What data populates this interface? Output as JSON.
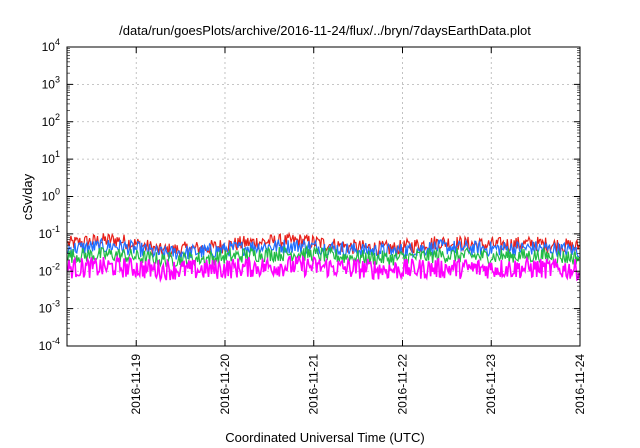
{
  "chart_data": {
    "type": "line",
    "title": "/data/run/goesPlots/archive/2016-11-24/flux/../bryn/7daysEarthData.plot",
    "xlabel": "Coordinated Universal Time (UTC)",
    "ylabel": "cSv/day",
    "xlim": [
      "2016-11-18",
      "2016-11-24"
    ],
    "ylim": [
      0.0001,
      10000
    ],
    "yscale": "log",
    "grid": true,
    "x_tick_labels": [
      "2016-11-19",
      "2016-11-20",
      "2016-11-21",
      "2016-11-22",
      "2016-11-23",
      "2016-11-24"
    ],
    "y_ticks": [
      {
        "mantissa": "10",
        "exp": "4",
        "value": 10000
      },
      {
        "mantissa": "10",
        "exp": "3",
        "value": 1000
      },
      {
        "mantissa": "10",
        "exp": "2",
        "value": 100
      },
      {
        "mantissa": "10",
        "exp": "1",
        "value": 10
      },
      {
        "mantissa": "10",
        "exp": "0",
        "value": 1
      },
      {
        "mantissa": "10",
        "exp": "-1",
        "value": 0.1
      },
      {
        "mantissa": "10",
        "exp": "-2",
        "value": 0.01
      },
      {
        "mantissa": "10",
        "exp": "-3",
        "value": 0.001
      },
      {
        "mantissa": "10",
        "exp": "-4",
        "value": 0.0001
      }
    ],
    "series": [
      {
        "color": "#e8201a",
        "values": [
          0.055,
          0.07,
          0.035,
          0.042,
          0.06,
          0.065,
          0.045,
          0.04,
          0.06,
          0.05,
          0.055,
          0.045
        ]
      },
      {
        "color": "#1f6fff",
        "values": [
          0.04,
          0.048,
          0.03,
          0.034,
          0.045,
          0.048,
          0.038,
          0.034,
          0.044,
          0.04,
          0.042,
          0.036
        ]
      },
      {
        "color": "#22bb44",
        "values": [
          0.026,
          0.028,
          0.02,
          0.022,
          0.028,
          0.03,
          0.024,
          0.022,
          0.027,
          0.025,
          0.026,
          0.023
        ]
      },
      {
        "color": "#ff00ff",
        "values": [
          0.012,
          0.013,
          0.011,
          0.011,
          0.013,
          0.014,
          0.012,
          0.011,
          0.012,
          0.012,
          0.012,
          0.011
        ]
      }
    ]
  }
}
